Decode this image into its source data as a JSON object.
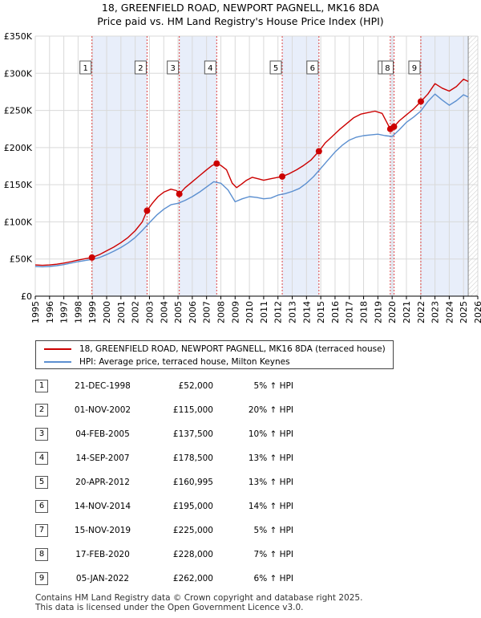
{
  "chart_data": {
    "type": "line",
    "title": "18, GREENFIELD ROAD, NEWPORT PAGNELL, MK16 8DA",
    "subtitle": "Price paid vs. HM Land Registry's House Price Index (HPI)",
    "xlabel": "",
    "ylabel": "",
    "xlim": [
      1995,
      2026
    ],
    "ylim": [
      0,
      350000
    ],
    "x_ticks": [
      "1995",
      "1996",
      "1997",
      "1998",
      "1999",
      "2000",
      "2001",
      "2002",
      "2003",
      "2004",
      "2005",
      "2006",
      "2007",
      "2008",
      "2009",
      "2010",
      "2011",
      "2012",
      "2013",
      "2014",
      "2015",
      "2016",
      "2017",
      "2018",
      "2019",
      "2020",
      "2021",
      "2022",
      "2023",
      "2024",
      "2025",
      "2026"
    ],
    "y_ticks": [
      {
        "value": 0,
        "label": "£0"
      },
      {
        "value": 50000,
        "label": "£50K"
      },
      {
        "value": 100000,
        "label": "£100K"
      },
      {
        "value": 150000,
        "label": "£150K"
      },
      {
        "value": 200000,
        "label": "£200K"
      },
      {
        "value": 250000,
        "label": "£250K"
      },
      {
        "value": 300000,
        "label": "£300K"
      },
      {
        "value": 350000,
        "label": "£350K"
      }
    ],
    "grid": true,
    "shaded_periods": [
      [
        1998.97,
        2002.83
      ],
      [
        2005.09,
        2007.71
      ],
      [
        2012.3,
        2014.87
      ],
      [
        2019.87,
        2020.13
      ],
      [
        2022.01,
        2025.33
      ]
    ],
    "forecast_start": 2025.33,
    "series": [
      {
        "name": "18, GREENFIELD ROAD, NEWPORT PAGNELL, MK16 8DA (terraced house)",
        "color": "#cc0000",
        "x": [
          1995.0,
          1995.5,
          1996.0,
          1996.5,
          1997.0,
          1997.5,
          1998.0,
          1998.5,
          1998.97,
          1999.5,
          2000.0,
          2000.5,
          2001.0,
          2001.5,
          2002.0,
          2002.5,
          2002.83,
          2003.2,
          2003.6,
          2004.0,
          2004.5,
          2004.9,
          2005.09,
          2005.5,
          2006.0,
          2006.5,
          2007.0,
          2007.4,
          2007.71,
          2008.0,
          2008.4,
          2008.8,
          2009.1,
          2009.4,
          2009.8,
          2010.2,
          2010.6,
          2011.0,
          2011.5,
          2012.0,
          2012.3,
          2012.8,
          2013.3,
          2013.8,
          2014.3,
          2014.87,
          2015.3,
          2015.8,
          2016.3,
          2016.8,
          2017.3,
          2017.8,
          2018.3,
          2018.8,
          2019.3,
          2019.87,
          2020.13,
          2020.5,
          2021.0,
          2021.5,
          2022.01,
          2022.5,
          2023.0,
          2023.5,
          2024.0,
          2024.5,
          2025.0,
          2025.33
        ],
        "values": [
          42000,
          41500,
          42000,
          43000,
          44500,
          46500,
          48500,
          50500,
          52000,
          56000,
          61000,
          66000,
          72000,
          79000,
          88000,
          100000,
          115000,
          125000,
          134000,
          140000,
          144000,
          142000,
          137500,
          146000,
          154000,
          162000,
          170000,
          176000,
          178500,
          176000,
          170000,
          152000,
          146000,
          150000,
          156000,
          160000,
          158000,
          156000,
          158000,
          160000,
          160995,
          165000,
          170000,
          176000,
          183000,
          195000,
          206000,
          215000,
          224000,
          232000,
          240000,
          245000,
          247000,
          249000,
          246000,
          225000,
          228000,
          236000,
          244000,
          252000,
          262000,
          272000,
          286000,
          280000,
          276000,
          282000,
          292000,
          289000
        ]
      },
      {
        "name": "HPI: Average price, terraced house, Milton Keynes",
        "color": "#5b8fd0",
        "x": [
          1995.0,
          1995.5,
          1996.0,
          1996.5,
          1997.0,
          1997.5,
          1998.0,
          1998.5,
          1999.0,
          1999.5,
          2000.0,
          2000.5,
          2001.0,
          2001.5,
          2002.0,
          2002.5,
          2003.0,
          2003.5,
          2004.0,
          2004.5,
          2005.0,
          2005.5,
          2006.0,
          2006.5,
          2007.0,
          2007.5,
          2008.0,
          2008.5,
          2009.0,
          2009.5,
          2010.0,
          2010.5,
          2011.0,
          2011.5,
          2012.0,
          2012.5,
          2013.0,
          2013.5,
          2014.0,
          2014.5,
          2015.0,
          2015.5,
          2016.0,
          2016.5,
          2017.0,
          2017.5,
          2018.0,
          2018.5,
          2019.0,
          2019.5,
          2020.0,
          2020.5,
          2021.0,
          2021.5,
          2022.0,
          2022.5,
          2023.0,
          2023.5,
          2024.0,
          2024.5,
          2025.0,
          2025.33
        ],
        "values": [
          40000,
          39500,
          40000,
          41000,
          42500,
          44500,
          46500,
          48000,
          49500,
          52000,
          56000,
          60500,
          65500,
          71500,
          79000,
          88500,
          99000,
          109000,
          117000,
          123000,
          125000,
          129000,
          134000,
          140000,
          147000,
          154000,
          152000,
          143000,
          127000,
          131000,
          134000,
          133000,
          131000,
          132000,
          136000,
          138000,
          141000,
          145000,
          152000,
          161000,
          172000,
          183000,
          194000,
          203000,
          210000,
          214000,
          216000,
          217000,
          218000,
          216000,
          215000,
          224000,
          234000,
          241000,
          249000,
          262000,
          272000,
          264000,
          257000,
          263000,
          271000,
          268000
        ]
      }
    ],
    "markers": [
      {
        "label": "1",
        "x": 1998.97,
        "value": 52000
      },
      {
        "label": "2",
        "x": 2002.83,
        "value": 115000
      },
      {
        "label": "3",
        "x": 2005.09,
        "value": 137500
      },
      {
        "label": "4",
        "x": 2007.71,
        "value": 178500
      },
      {
        "label": "5",
        "x": 2012.3,
        "value": 160995
      },
      {
        "label": "6",
        "x": 2014.87,
        "value": 195000
      },
      {
        "label": "7",
        "x": 2019.87,
        "value": 225000
      },
      {
        "label": "8",
        "x": 2020.13,
        "value": 228000
      },
      {
        "label": "9",
        "x": 2022.01,
        "value": 262000
      }
    ],
    "legend_position": "below"
  },
  "transactions": [
    {
      "num": "1",
      "date": "21-DEC-1998",
      "price": "£52,000",
      "hpi": "5% ↑ HPI"
    },
    {
      "num": "2",
      "date": "01-NOV-2002",
      "price": "£115,000",
      "hpi": "20% ↑ HPI"
    },
    {
      "num": "3",
      "date": "04-FEB-2005",
      "price": "£137,500",
      "hpi": "10% ↑ HPI"
    },
    {
      "num": "4",
      "date": "14-SEP-2007",
      "price": "£178,500",
      "hpi": "13% ↑ HPI"
    },
    {
      "num": "5",
      "date": "20-APR-2012",
      "price": "£160,995",
      "hpi": "13% ↑ HPI"
    },
    {
      "num": "6",
      "date": "14-NOV-2014",
      "price": "£195,000",
      "hpi": "14% ↑ HPI"
    },
    {
      "num": "7",
      "date": "15-NOV-2019",
      "price": "£225,000",
      "hpi": "5% ↑ HPI"
    },
    {
      "num": "8",
      "date": "17-FEB-2020",
      "price": "£228,000",
      "hpi": "7% ↑ HPI"
    },
    {
      "num": "9",
      "date": "05-JAN-2022",
      "price": "£262,000",
      "hpi": "6% ↑ HPI"
    }
  ],
  "footer": {
    "line1": "Contains HM Land Registry data © Crown copyright and database right 2025.",
    "line2": "This data is licensed under the Open Government Licence v3.0."
  }
}
